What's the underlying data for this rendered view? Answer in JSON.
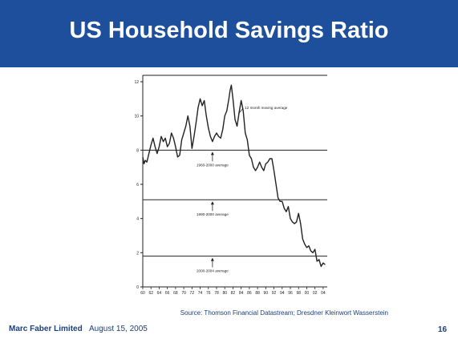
{
  "slide": {
    "title": "US Household Savings Ratio",
    "source": "Source: Thomson Financial Datastream; Dresdner Kleinwort Wasserstein",
    "company": "Marc Faber Limited",
    "date": "August 15, 2005",
    "page_number": "16"
  },
  "colors": {
    "title_bar": "#1d4f9c",
    "title_text": "#ffffff",
    "footer_text": "#1d3f7a",
    "line": "#222222"
  },
  "chart_data": {
    "type": "line",
    "title": "",
    "xlabel": "",
    "ylabel": "",
    "xlim": [
      1960,
      2005
    ],
    "ylim": [
      0,
      12
    ],
    "yticks": [
      0,
      2,
      4,
      6,
      8,
      10,
      12
    ],
    "xtick_labels": [
      "60",
      "62",
      "64",
      "66",
      "68",
      "70",
      "72",
      "74",
      "76",
      "78",
      "80",
      "82",
      "84",
      "86",
      "88",
      "90",
      "92",
      "94",
      "96",
      "98",
      "00",
      "02",
      "04"
    ],
    "grid": false,
    "series": [
      {
        "x": [
          1960,
          1960.3,
          1960.6,
          1961,
          1961.5,
          1962,
          1962.5,
          1963,
          1963.5,
          1964,
          1964.5,
          1965,
          1965.5,
          1966,
          1966.5,
          1967,
          1967.5,
          1968,
          1968.5,
          1969,
          1969.5,
          1970,
          1970.5,
          1971,
          1971.5,
          1972,
          1972.5,
          1973,
          1973.5,
          1974,
          1974.5,
          1975,
          1975.5,
          1976,
          1976.5,
          1977,
          1977.5,
          1978,
          1978.5,
          1979,
          1979.5,
          1980,
          1980.5,
          1981,
          1981.3,
          1981.6,
          1982,
          1982.5,
          1983,
          1983.5,
          1984,
          1984.5,
          1985,
          1985.5,
          1986,
          1986.5,
          1987,
          1987.5,
          1988,
          1988.5,
          1989,
          1989.5,
          1990,
          1990.5,
          1991,
          1991.5,
          1992,
          1992.5,
          1993,
          1993.5,
          1994,
          1994.5,
          1995,
          1995.5,
          1996,
          1996.5,
          1997,
          1997.5,
          1998,
          1998.5,
          1999,
          1999.5,
          2000,
          2000.5,
          2001,
          2001.5,
          2002,
          2002.5,
          2003,
          2003.5,
          2004,
          2004.5
        ],
        "y": [
          7.6,
          7.2,
          7.4,
          7.3,
          7.8,
          8.3,
          8.7,
          8.2,
          7.8,
          8.2,
          8.8,
          8.5,
          8.7,
          8.2,
          8.4,
          9.0,
          8.7,
          8.2,
          7.6,
          7.7,
          8.6,
          9.0,
          9.4,
          10.0,
          9.4,
          8.1,
          8.8,
          9.6,
          10.5,
          11.0,
          10.6,
          10.9,
          10.0,
          9.3,
          8.8,
          8.5,
          8.8,
          9.0,
          8.8,
          8.7,
          9.2,
          10.0,
          10.3,
          11.0,
          11.5,
          11.8,
          11.0,
          9.8,
          9.4,
          10.2,
          10.9,
          10.3,
          9.0,
          8.6,
          7.7,
          7.5,
          7.0,
          6.8,
          7.0,
          7.3,
          7.0,
          6.8,
          7.2,
          7.3,
          7.5,
          7.5,
          6.8,
          6.0,
          5.2,
          5.0,
          5.0,
          4.6,
          4.4,
          4.7,
          4.0,
          3.8,
          3.7,
          3.8,
          4.3,
          3.7,
          2.8,
          2.5,
          2.3,
          2.4,
          2.1,
          2.0,
          2.2,
          1.5,
          1.6,
          1.2,
          1.4,
          1.3
        ]
      }
    ],
    "reference_lines": [
      {
        "label": "1960-2000 average",
        "value": 8.0
      },
      {
        "label": "1990-2000 average",
        "value": 5.1
      },
      {
        "label": "2000-2004 average",
        "value": 1.8
      }
    ],
    "annotations": [
      {
        "text": "12 month moving average",
        "x": 1984.5,
        "y": 10.5
      }
    ]
  }
}
